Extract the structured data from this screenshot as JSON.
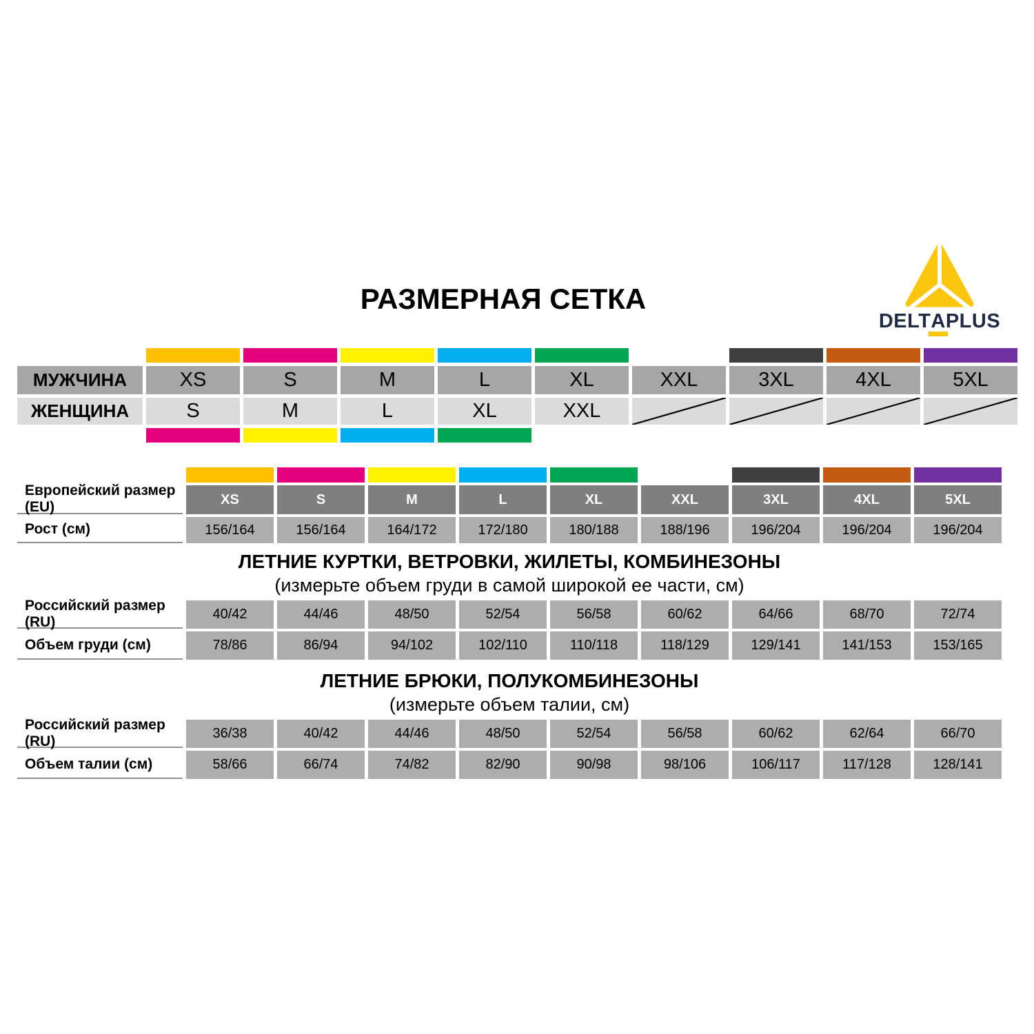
{
  "page": {
    "title": "РАЗМЕРНАЯ СЕТКА"
  },
  "logo": {
    "brand_pre": "DELT",
    "brand_a": "A",
    "brand_post": "PLUS",
    "triangle_color": "#FCC60E",
    "underline_color": "#FCC60E",
    "text_color": "#1F2B45"
  },
  "correspondence_table": {
    "men_label": "МУЖЧИНА",
    "women_label": "ЖЕНЩИНА",
    "columns": [
      {
        "men": "XS",
        "women": "S",
        "top_color": "#FFC000",
        "bottom_color": "#E4007C",
        "women_unavailable": false
      },
      {
        "men": "S",
        "women": "M",
        "top_color": "#E4007C",
        "bottom_color": "#FFF100",
        "women_unavailable": false
      },
      {
        "men": "M",
        "women": "L",
        "top_color": "#FFF100",
        "bottom_color": "#00AEEF",
        "women_unavailable": false
      },
      {
        "men": "L",
        "women": "XL",
        "top_color": "#00AEEF",
        "bottom_color": "#00A651",
        "women_unavailable": false
      },
      {
        "men": "XL",
        "women": "XXL",
        "top_color": "#00A651",
        "bottom_color": null,
        "women_unavailable": false
      },
      {
        "men": "XXL",
        "women": null,
        "top_color": null,
        "bottom_color": null,
        "women_unavailable": true
      },
      {
        "men": "3XL",
        "women": null,
        "top_color": "#3F3F3F",
        "bottom_color": null,
        "women_unavailable": true
      },
      {
        "men": "4XL",
        "women": null,
        "top_color": "#C55A11",
        "bottom_color": null,
        "women_unavailable": true
      },
      {
        "men": "5XL",
        "women": null,
        "top_color": "#7030A0",
        "bottom_color": null,
        "women_unavailable": true
      }
    ]
  },
  "eu_table": {
    "size_label": "Европейский размер (EU)",
    "height_label": "Рост (см)",
    "columns": [
      {
        "size": "XS",
        "height": "156/164",
        "color": "#FFC000"
      },
      {
        "size": "S",
        "height": "156/164",
        "color": "#E4007C"
      },
      {
        "size": "M",
        "height": "164/172",
        "color": "#FFF100"
      },
      {
        "size": "L",
        "height": "172/180",
        "color": "#00AEEF"
      },
      {
        "size": "XL",
        "height": "180/188",
        "color": "#00A651"
      },
      {
        "size": "XXL",
        "height": "188/196",
        "color": null
      },
      {
        "size": "3XL",
        "height": "196/204",
        "color": "#3F3F3F"
      },
      {
        "size": "4XL",
        "height": "196/204",
        "color": "#C55A11"
      },
      {
        "size": "5XL",
        "height": "196/204",
        "color": "#7030A0"
      }
    ]
  },
  "sections": [
    {
      "title": "ЛЕТНИЕ КУРТКИ, ВЕТРОВКИ, ЖИЛЕТЫ, КОМБИНЕЗОНЫ",
      "subtitle": "(измерьте объем груди в самой широкой ее части, см)",
      "rows": [
        {
          "label": "Российский размер (RU)",
          "values": [
            "40/42",
            "44/46",
            "48/50",
            "52/54",
            "56/58",
            "60/62",
            "64/66",
            "68/70",
            "72/74"
          ]
        },
        {
          "label": "Объем груди (см)",
          "values": [
            "78/86",
            "86/94",
            "94/102",
            "102/110",
            "110/118",
            "118/129",
            "129/141",
            "141/153",
            "153/165"
          ]
        }
      ]
    },
    {
      "title": "ЛЕТНИЕ БРЮКИ, ПОЛУКОМБИНЕЗОНЫ",
      "subtitle": "(измерьте объем талии, см)",
      "rows": [
        {
          "label": "Российский размер (RU)",
          "values": [
            "36/38",
            "40/42",
            "44/46",
            "48/50",
            "52/54",
            "56/58",
            "60/62",
            "62/64",
            "66/70"
          ]
        },
        {
          "label": "Объем талии (см)",
          "values": [
            "58/66",
            "66/74",
            "74/82",
            "82/90",
            "90/98",
            "98/106",
            "106/117",
            "117/128",
            "128/141"
          ]
        }
      ]
    }
  ]
}
